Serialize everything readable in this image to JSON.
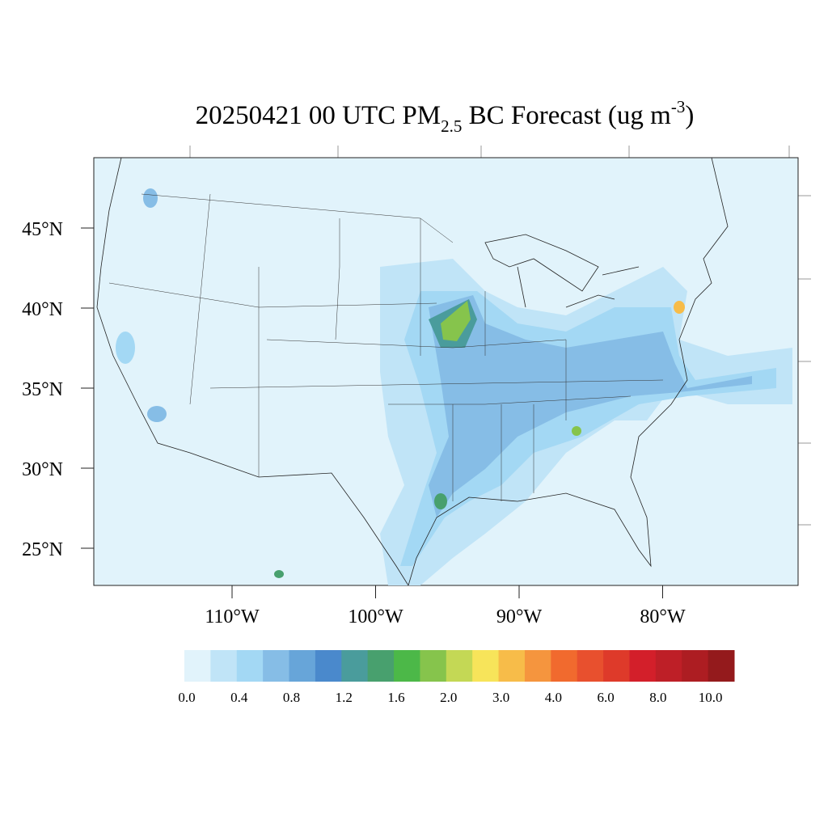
{
  "title_parts": [
    "20250421 00 UTC PM",
    "2.5",
    " BC Forecast (ug m",
    "-3",
    ")"
  ],
  "lat_ticks": [
    {
      "value": 45,
      "label": "45°N"
    },
    {
      "value": 40,
      "label": "40°N"
    },
    {
      "value": 35,
      "label": "35°N"
    },
    {
      "value": 30,
      "label": "30°N"
    },
    {
      "value": 25,
      "label": "25°N"
    }
  ],
  "lon_ticks": [
    {
      "value": -110,
      "label": "110°W"
    },
    {
      "value": -100,
      "label": "100°W"
    },
    {
      "value": -90,
      "label": "90°W"
    },
    {
      "value": -80,
      "label": "80°W"
    }
  ],
  "colorbar": {
    "colors": [
      "#e1f3fb",
      "#c0e4f7",
      "#a3d8f4",
      "#86bde6",
      "#67a5d9",
      "#4a89cc",
      "#4a9c9c",
      "#48a06e",
      "#4cb848",
      "#86c44c",
      "#c4d855",
      "#f7e45a",
      "#f7bc49",
      "#f5953e",
      "#f16a2e",
      "#e8502e",
      "#de3a2a",
      "#d31f2a",
      "#be1f27",
      "#ad1d22",
      "#941a1c"
    ],
    "labels": [
      "0.0",
      "0.4",
      "0.8",
      "1.2",
      "1.6",
      "2.0",
      "3.0",
      "4.0",
      "6.0",
      "8.0",
      "10.0"
    ]
  }
}
